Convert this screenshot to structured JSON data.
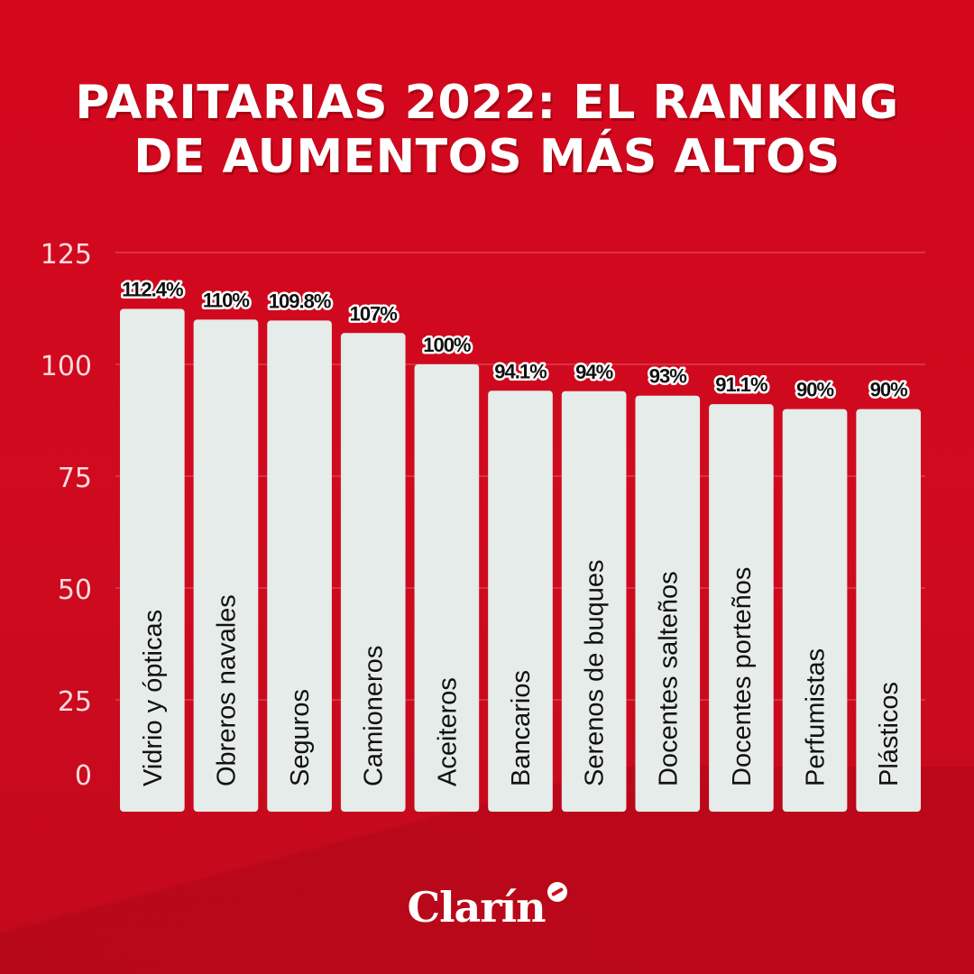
{
  "title": {
    "line1": "PARITARIAS 2022: EL RANKING",
    "line2": "DE AUMENTOS MÁS ALTOS"
  },
  "brand": {
    "logo_text": "Clarín",
    "logo_icon": "clarin-logo-icon"
  },
  "colors": {
    "background": "#d10a1e",
    "bar": "#e6ecea",
    "text": "#ffffff",
    "label": "#111111"
  },
  "chart_data": {
    "type": "bar",
    "categories": [
      "Vidrio y ópticas",
      "Obreros navales",
      "Seguros",
      "Camioneros",
      "Aceiteros",
      "Bancarios",
      "Serenos de buques",
      "Docentes salteños",
      "Docentes porteños",
      "Perfumistas",
      "Plásticos"
    ],
    "values": [
      112.4,
      110,
      109.8,
      107,
      100,
      94.1,
      94,
      93,
      91.1,
      90,
      90
    ],
    "data_labels": [
      "112.4%",
      "110%",
      "109.8%",
      "107%",
      "100%",
      "94.1%",
      "94%",
      "93%",
      "91.1%",
      "90%",
      "90%"
    ],
    "yticks": [
      0,
      25,
      50,
      75,
      100,
      125
    ],
    "ylim": [
      0,
      125
    ],
    "grid": true,
    "xlabel": "",
    "ylabel": ""
  }
}
